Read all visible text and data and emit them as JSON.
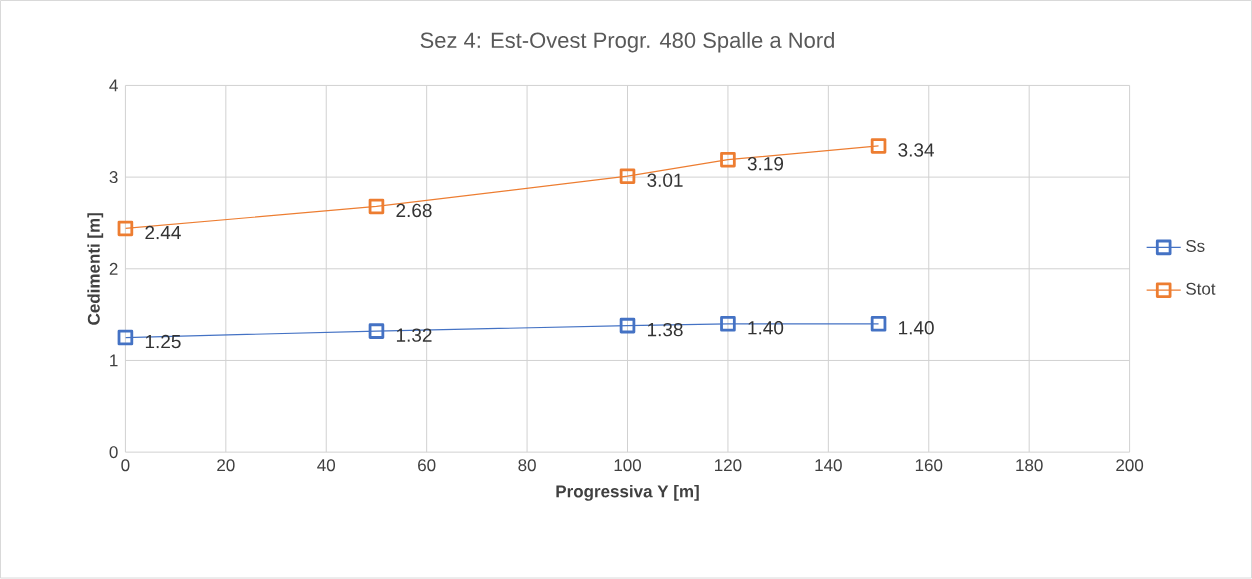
{
  "chart_data": {
    "type": "line",
    "title": "Sez 4: Est-Ovest Progr. 480 Spalle a Nord",
    "xlabel": "Progressiva Y [m]",
    "ylabel": "Cedimenti [m]",
    "x": [
      0,
      50,
      100,
      120,
      150
    ],
    "series": [
      {
        "name": "Ss",
        "color": "#4472c4",
        "values": [
          1.25,
          1.32,
          1.38,
          1.4,
          1.4
        ],
        "value_labels": [
          "1.25",
          "1.32",
          "1.38",
          "1.40",
          "1.40"
        ]
      },
      {
        "name": "Stot",
        "color": "#ed7d31",
        "values": [
          2.44,
          2.68,
          3.01,
          3.19,
          3.34
        ],
        "value_labels": [
          "2.44",
          "2.68",
          "3.01",
          "3.19",
          "3.34"
        ]
      }
    ],
    "xlim": [
      0,
      200
    ],
    "xticks": [
      0,
      20,
      40,
      60,
      80,
      100,
      120,
      140,
      160,
      180,
      200
    ],
    "ylim": [
      0,
      4
    ],
    "yticks": [
      0,
      1,
      2,
      3,
      4
    ],
    "grid": true,
    "legend": "right",
    "marker": "square",
    "line_style": "solid"
  }
}
